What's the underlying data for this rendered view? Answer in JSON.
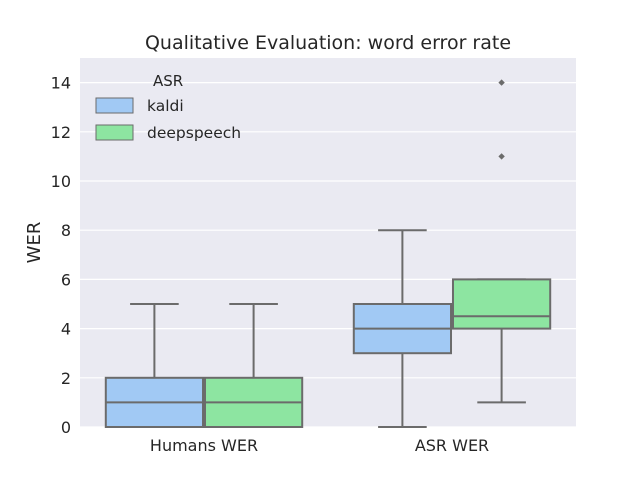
{
  "chart_data": {
    "type": "box",
    "title": "Qualitative Evaluation: word error rate",
    "xlabel": "",
    "ylabel": "WER",
    "ylim": [
      0,
      15
    ],
    "yticks": [
      0,
      2,
      4,
      6,
      8,
      10,
      12,
      14
    ],
    "grid": true,
    "categories": [
      "Humans WER",
      "ASR WER"
    ],
    "legend": {
      "title": "ASR",
      "placement": "top-left"
    },
    "series": [
      {
        "name": "kaldi",
        "color": "#a1c9f4",
        "boxes": [
          {
            "category": "Humans WER",
            "whisker_low": 0,
            "q1": 0,
            "median": 1,
            "q3": 2,
            "whisker_high": 5,
            "outliers": []
          },
          {
            "category": "ASR WER",
            "whisker_low": 0,
            "q1": 3,
            "median": 4,
            "q3": 5,
            "whisker_high": 8,
            "outliers": []
          }
        ]
      },
      {
        "name": "deepspeech",
        "color": "#8de5a1",
        "boxes": [
          {
            "category": "Humans WER",
            "whisker_low": 0,
            "q1": 0,
            "median": 1,
            "q3": 2,
            "whisker_high": 5,
            "outliers": []
          },
          {
            "category": "ASR WER",
            "whisker_low": 1,
            "q1": 4,
            "median": 4.5,
            "q3": 6,
            "whisker_high": 6,
            "outliers": [
              11,
              14
            ]
          }
        ]
      }
    ]
  },
  "colors": {
    "background": "#eaeaf2",
    "grid": "#ffffff",
    "edge": "#6b6b6b",
    "text": "#262626"
  }
}
